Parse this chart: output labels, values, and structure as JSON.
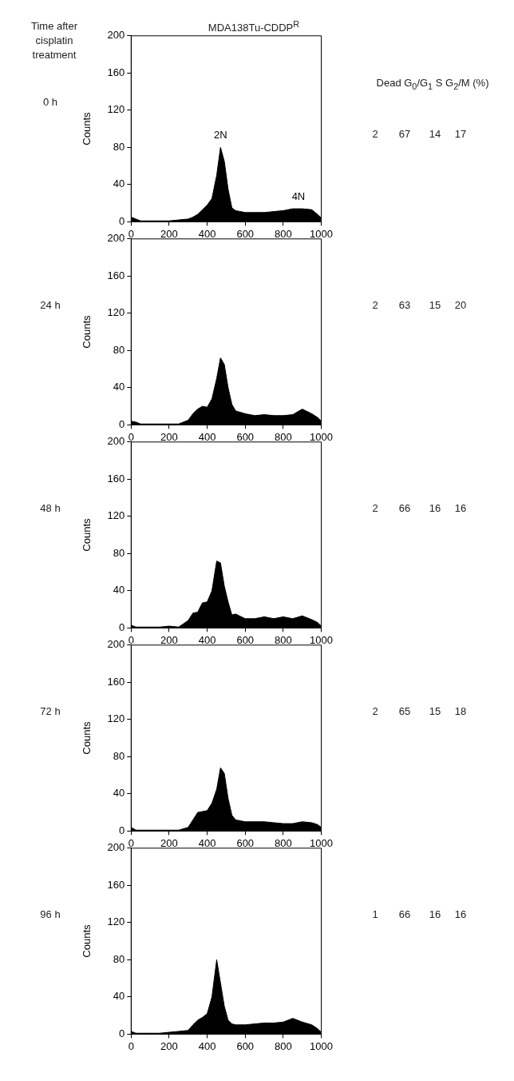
{
  "chart_data": [
    {
      "type": "area",
      "title": "MDA138Tu-CDDP$^{R}$",
      "ylabel": "Counts",
      "color": "#000000",
      "marker": "none",
      "grid": false,
      "legend": false,
      "x": [
        0,
        25,
        50,
        100,
        150,
        200,
        250,
        300,
        325,
        350,
        375,
        400,
        425,
        450,
        470,
        490,
        510,
        530,
        550,
        600,
        650,
        700,
        750,
        800,
        850,
        900,
        950,
        980,
        1000
      ],
      "values": [
        5,
        3,
        1,
        1,
        1,
        1,
        2,
        3,
        5,
        8,
        13,
        18,
        25,
        50,
        80,
        65,
        35,
        15,
        12,
        10,
        10,
        10,
        11,
        12,
        14,
        14,
        13,
        8,
        4
      ],
      "xlim": [
        0,
        1000
      ],
      "xticks": [
        0,
        200,
        400,
        600,
        800,
        1000
      ],
      "ylim": [
        0,
        200
      ],
      "yticks": [
        0,
        40,
        80,
        120,
        160,
        200
      ],
      "annotations": [
        "0 h",
        "2",
        "67",
        "14",
        "17",
        "Time after cisplatin treatment",
        "Dead G$_{0}$/G$_{1}$ S G$_{2}$/M (%)",
        {
          "text": "2N",
          "x": 470,
          "y": 82
        },
        {
          "text": "4N",
          "x": 880,
          "y": 16
        }
      ]
    },
    {
      "type": "area",
      "ylabel": "Counts",
      "color": "#000000",
      "marker": "none",
      "grid": false,
      "legend": false,
      "x": [
        0,
        25,
        50,
        100,
        150,
        200,
        250,
        300,
        325,
        350,
        375,
        400,
        425,
        450,
        470,
        490,
        510,
        530,
        550,
        600,
        650,
        700,
        750,
        800,
        850,
        900,
        950,
        980,
        1000
      ],
      "values": [
        4,
        3,
        1,
        1,
        1,
        1,
        1,
        5,
        12,
        17,
        20,
        19,
        28,
        50,
        72,
        65,
        40,
        22,
        15,
        12,
        10,
        11,
        10,
        10,
        11,
        17,
        12,
        8,
        4
      ],
      "xlim": [
        0,
        1000
      ],
      "xticks": [
        0,
        200,
        400,
        600,
        800,
        1000
      ],
      "ylim": [
        0,
        200
      ],
      "yticks": [
        0,
        40,
        80,
        120,
        160,
        200
      ],
      "annotations": [
        "24 h",
        "2",
        "63",
        "15",
        "20"
      ]
    },
    {
      "type": "area",
      "ylabel": "Counts",
      "color": "#000000",
      "marker": "none",
      "grid": false,
      "legend": false,
      "x": [
        0,
        25,
        50,
        100,
        150,
        200,
        250,
        300,
        325,
        350,
        375,
        400,
        425,
        450,
        470,
        490,
        510,
        530,
        550,
        600,
        650,
        700,
        750,
        800,
        850,
        900,
        950,
        980,
        1000
      ],
      "values": [
        3,
        1,
        1,
        1,
        1,
        2,
        1,
        8,
        16,
        17,
        27,
        28,
        40,
        72,
        70,
        45,
        28,
        14,
        15,
        10,
        10,
        12,
        10,
        12,
        10,
        13,
        9,
        6,
        2
      ],
      "xlim": [
        0,
        1000
      ],
      "xticks": [
        0,
        200,
        400,
        600,
        800,
        1000
      ],
      "ylim": [
        0,
        200
      ],
      "yticks": [
        0,
        40,
        80,
        120,
        160,
        200
      ],
      "annotations": [
        "48 h",
        "2",
        "66",
        "16",
        "16"
      ]
    },
    {
      "type": "area",
      "ylabel": "Counts",
      "color": "#000000",
      "marker": "none",
      "grid": false,
      "legend": false,
      "x": [
        0,
        25,
        50,
        100,
        150,
        200,
        250,
        300,
        325,
        350,
        375,
        400,
        425,
        450,
        470,
        490,
        510,
        530,
        550,
        600,
        650,
        700,
        750,
        800,
        850,
        900,
        950,
        980,
        1000
      ],
      "values": [
        4,
        1,
        1,
        1,
        1,
        1,
        1,
        4,
        12,
        20,
        21,
        22,
        30,
        45,
        68,
        62,
        35,
        17,
        12,
        10,
        10,
        10,
        9,
        8,
        8,
        10,
        9,
        7,
        4
      ],
      "xlim": [
        0,
        1000
      ],
      "xticks": [
        0,
        200,
        400,
        600,
        800,
        1000
      ],
      "ylim": [
        0,
        200
      ],
      "yticks": [
        0,
        40,
        80,
        120,
        160,
        200
      ],
      "annotations": [
        "72 h",
        "2",
        "65",
        "15",
        "18"
      ]
    },
    {
      "type": "area",
      "ylabel": "Counts",
      "color": "#000000",
      "marker": "none",
      "grid": false,
      "legend": false,
      "x": [
        0,
        25,
        50,
        100,
        150,
        200,
        250,
        300,
        325,
        350,
        375,
        400,
        425,
        450,
        470,
        490,
        510,
        530,
        550,
        600,
        650,
        700,
        750,
        800,
        850,
        900,
        950,
        980,
        1000
      ],
      "values": [
        3,
        1,
        1,
        1,
        1,
        2,
        3,
        4,
        10,
        15,
        18,
        22,
        40,
        80,
        55,
        30,
        15,
        11,
        10,
        10,
        11,
        12,
        12,
        13,
        17,
        13,
        10,
        6,
        2
      ],
      "xlim": [
        0,
        1000
      ],
      "xticks": [
        0,
        200,
        400,
        600,
        800,
        1000
      ],
      "ylim": [
        0,
        200
      ],
      "yticks": [
        0,
        40,
        80,
        120,
        160,
        200
      ],
      "annotations": [
        "96 h",
        "1",
        "66",
        "16",
        "16"
      ]
    }
  ]
}
